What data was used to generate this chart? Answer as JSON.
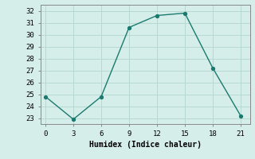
{
  "x": [
    0,
    3,
    6,
    9,
    12,
    15,
    18,
    21
  ],
  "y": [
    24.8,
    22.9,
    24.8,
    30.6,
    31.6,
    31.8,
    27.2,
    23.2
  ],
  "xlabel": "Humidex (Indice chaleur)",
  "ylim": [
    22.5,
    32.5
  ],
  "xlim": [
    -0.5,
    22
  ],
  "yticks": [
    23,
    24,
    25,
    26,
    27,
    28,
    29,
    30,
    31,
    32
  ],
  "xticks": [
    0,
    3,
    6,
    9,
    12,
    15,
    18,
    21
  ],
  "line_color": "#1a7a6e",
  "bg_color": "#d6eeea",
  "grid_color": "#b8d8d2",
  "marker": "o",
  "markersize": 2.8,
  "linewidth": 1.0,
  "tick_labelsize": 6.5,
  "xlabel_fontsize": 7.0
}
